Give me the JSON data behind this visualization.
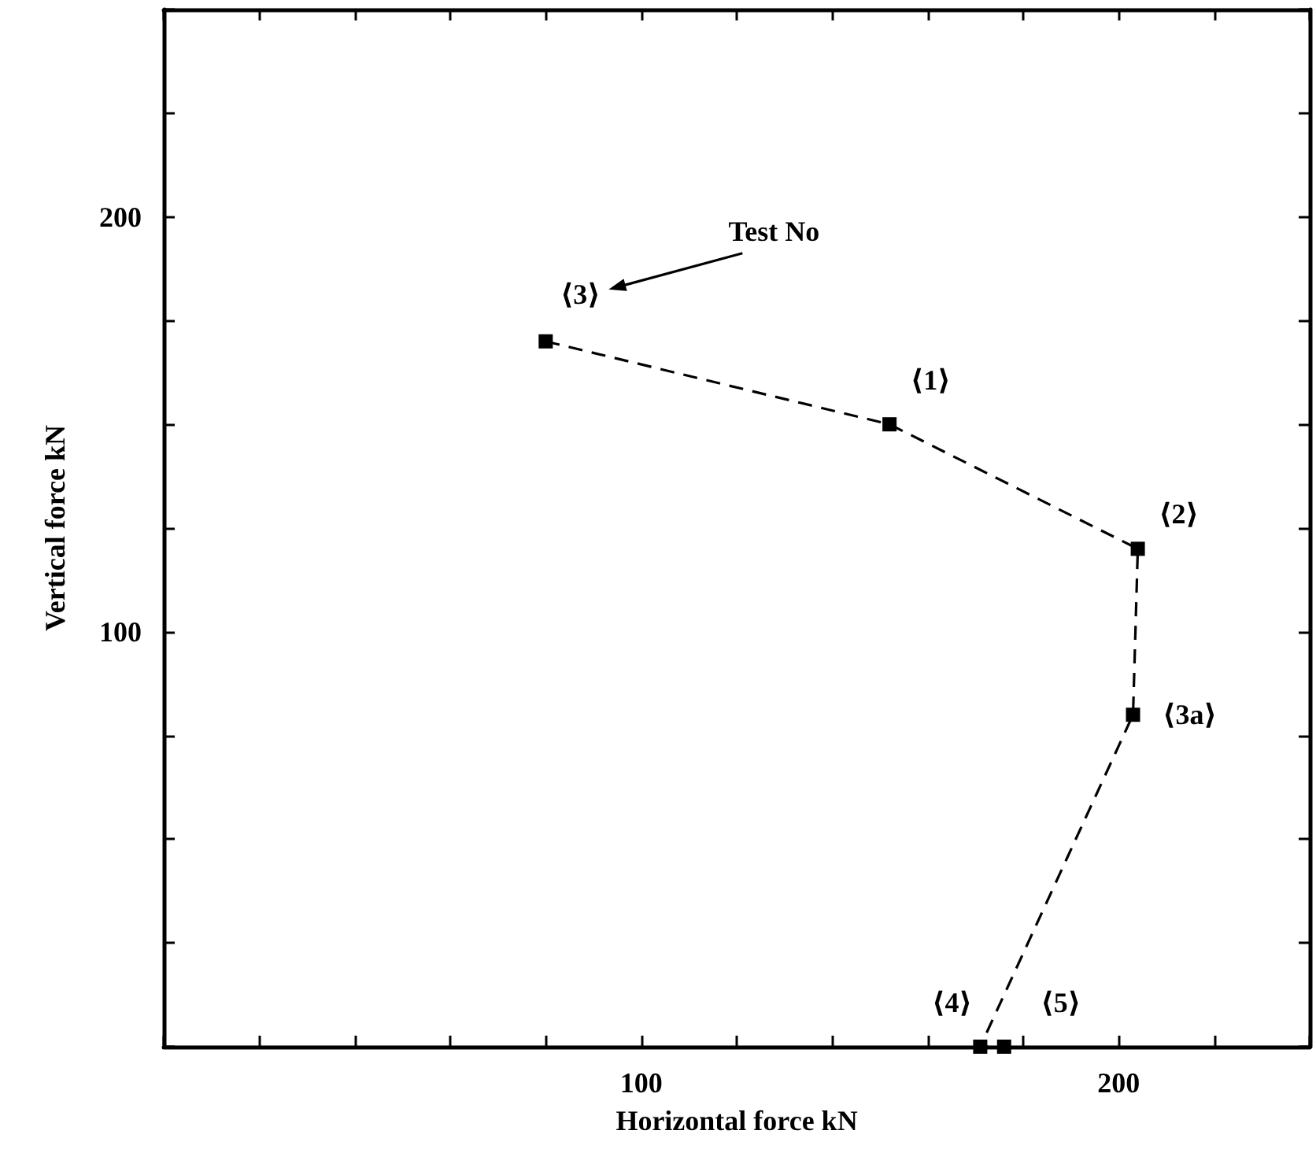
{
  "chart_data": {
    "type": "line",
    "xlabel": "Horizontal force kN",
    "ylabel": "Vertical force kN",
    "x": [
      80,
      152,
      204,
      203,
      171,
      176
    ],
    "series": [
      {
        "color": "#000000",
        "values": [
          170,
          150,
          120,
          80,
          0,
          0
        ]
      }
    ],
    "xlim": [
      0,
      240
    ],
    "xticks": [
      {
        "value": 0,
        "label": null
      },
      {
        "value": 20,
        "label": null
      },
      {
        "value": 40,
        "label": null
      },
      {
        "value": 60,
        "label": null
      },
      {
        "value": 80,
        "label": null
      },
      100,
      {
        "value": 120,
        "label": null
      },
      {
        "value": 140,
        "label": null
      },
      {
        "value": 160,
        "label": null
      },
      {
        "value": 180,
        "label": null
      },
      200,
      {
        "value": 220,
        "label": null
      },
      {
        "value": 240,
        "label": null
      }
    ],
    "ylim": [
      0,
      250
    ],
    "yticks": [
      {
        "value": 0,
        "label": null
      },
      {
        "value": 25,
        "label": null
      },
      {
        "value": 50,
        "label": null
      },
      {
        "value": 75,
        "label": null
      },
      100,
      {
        "value": 125,
        "label": null
      },
      {
        "value": 150,
        "label": null
      },
      {
        "value": 175,
        "label": null
      },
      200,
      {
        "value": 225,
        "label": null
      },
      {
        "value": 250,
        "label": null
      }
    ],
    "annotations": [
      "Test No",
      {
        "text": "⟨3⟩",
        "x": 80,
        "y": 170
      },
      {
        "text": "⟨1⟩",
        "x": 152,
        "y": 150
      },
      {
        "text": "⟨2⟩",
        "x": 204,
        "y": 120
      },
      {
        "text": "⟨3a⟩",
        "x": 203,
        "y": 80
      },
      {
        "text": "⟨4⟩",
        "x": 171,
        "y": 0
      },
      {
        "text": "⟨5⟩",
        "x": 176,
        "y": 0
      }
    ],
    "marker": "square",
    "line_style": "dashed"
  }
}
